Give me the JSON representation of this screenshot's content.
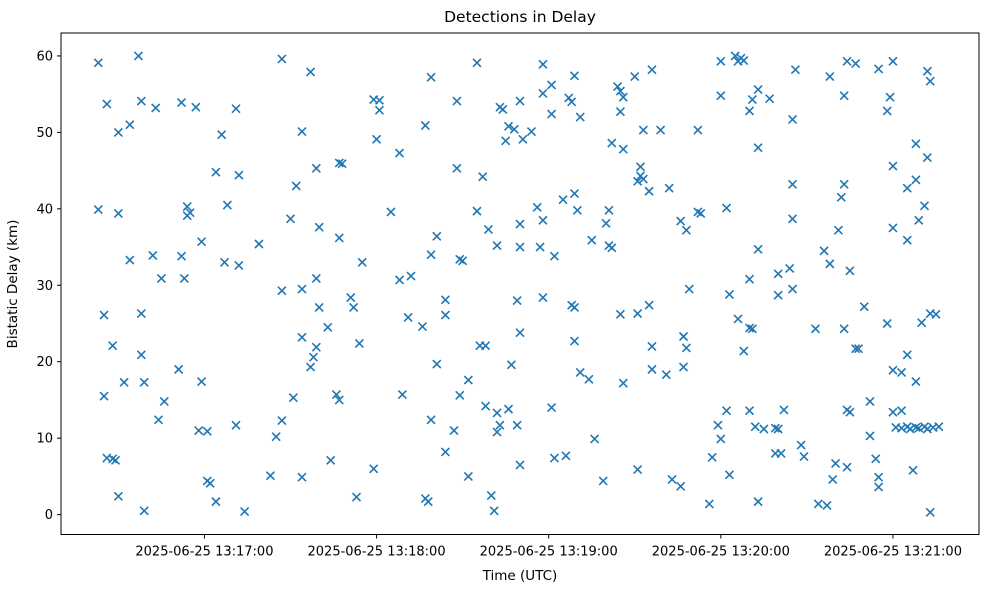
{
  "chart_data": {
    "type": "scatter",
    "title": "Detections in Delay",
    "xlabel": "Time (UTC)",
    "ylabel": "Bistatic Delay (km)",
    "legend": null,
    "grid": false,
    "marker": "x",
    "marker_color": "#1f77b4",
    "x_unit": "seconds after 2025-06-25 13:16:00 UTC",
    "xlim_seconds": [
      10,
      330
    ],
    "ylim": [
      -2.6,
      63.0
    ],
    "x_ticks": [
      {
        "t": 60,
        "label": "2025-06-25 13:17:00"
      },
      {
        "t": 120,
        "label": "2025-06-25 13:18:00"
      },
      {
        "t": 180,
        "label": "2025-06-25 13:19:00"
      },
      {
        "t": 240,
        "label": "2025-06-25 13:20:00"
      },
      {
        "t": 300,
        "label": "2025-06-25 13:21:00"
      }
    ],
    "y_ticks": [
      0,
      10,
      20,
      30,
      40,
      50,
      60
    ],
    "points": [
      [
        23,
        59.1
      ],
      [
        37,
        60.0
      ],
      [
        87,
        59.6
      ],
      [
        26,
        53.7
      ],
      [
        38,
        54.1
      ],
      [
        43,
        53.2
      ],
      [
        52,
        53.9
      ],
      [
        57,
        53.3
      ],
      [
        71,
        53.1
      ],
      [
        34,
        51.0
      ],
      [
        30,
        50.0
      ],
      [
        66,
        49.7
      ],
      [
        64,
        44.8
      ],
      [
        72,
        44.4
      ],
      [
        23,
        39.9
      ],
      [
        30,
        39.4
      ],
      [
        54,
        40.3
      ],
      [
        55,
        39.5
      ],
      [
        54,
        39.1
      ],
      [
        68,
        40.5
      ],
      [
        90,
        38.7
      ],
      [
        59,
        35.7
      ],
      [
        79,
        35.4
      ],
      [
        34,
        33.3
      ],
      [
        42,
        33.9
      ],
      [
        52,
        33.8
      ],
      [
        67,
        33.0
      ],
      [
        72,
        32.6
      ],
      [
        45,
        30.9
      ],
      [
        53,
        30.9
      ],
      [
        97,
        57.9
      ],
      [
        155,
        59.1
      ],
      [
        139,
        57.2
      ],
      [
        119,
        54.3
      ],
      [
        121,
        54.2
      ],
      [
        121,
        52.9
      ],
      [
        148,
        54.1
      ],
      [
        163,
        53.3
      ],
      [
        164,
        53.0
      ],
      [
        170,
        54.1
      ],
      [
        94,
        50.1
      ],
      [
        137,
        50.9
      ],
      [
        166,
        50.8
      ],
      [
        168,
        50.4
      ],
      [
        165,
        48.9
      ],
      [
        171,
        49.1
      ],
      [
        120,
        49.1
      ],
      [
        128,
        47.3
      ],
      [
        107,
        46.0
      ],
      [
        108,
        45.9
      ],
      [
        99,
        45.3
      ],
      [
        148,
        45.3
      ],
      [
        157,
        44.2
      ],
      [
        92,
        43.0
      ],
      [
        125,
        39.6
      ],
      [
        155,
        39.7
      ],
      [
        100,
        37.6
      ],
      [
        107,
        36.2
      ],
      [
        141,
        36.4
      ],
      [
        139,
        34.0
      ],
      [
        149,
        33.4
      ],
      [
        150,
        33.2
      ],
      [
        115,
        33.0
      ],
      [
        159,
        37.3
      ],
      [
        162,
        35.2
      ],
      [
        170,
        38.0
      ],
      [
        170,
        35.0
      ],
      [
        99,
        30.9
      ],
      [
        128,
        30.7
      ],
      [
        132,
        31.2
      ],
      [
        178,
        58.9
      ],
      [
        189,
        57.4
      ],
      [
        181,
        56.2
      ],
      [
        178,
        55.1
      ],
      [
        187,
        54.5
      ],
      [
        188,
        54.0
      ],
      [
        181,
        52.4
      ],
      [
        191,
        52.0
      ],
      [
        204,
        56.0
      ],
      [
        205,
        55.4
      ],
      [
        206,
        54.6
      ],
      [
        210,
        57.3
      ],
      [
        216,
        58.2
      ],
      [
        205,
        52.7
      ],
      [
        240,
        59.3
      ],
      [
        245,
        60.0
      ],
      [
        246,
        59.3
      ],
      [
        247,
        59.7
      ],
      [
        248,
        59.4
      ],
      [
        240,
        54.8
      ],
      [
        251,
        54.3
      ],
      [
        250,
        52.8
      ],
      [
        213,
        50.3
      ],
      [
        219,
        50.3
      ],
      [
        232,
        50.3
      ],
      [
        174,
        50.1
      ],
      [
        202,
        48.6
      ],
      [
        206,
        47.8
      ],
      [
        212,
        45.5
      ],
      [
        212,
        44.3
      ],
      [
        211,
        43.6
      ],
      [
        213,
        43.9
      ],
      [
        215,
        42.3
      ],
      [
        222,
        42.7
      ],
      [
        185,
        41.2
      ],
      [
        189,
        42.0
      ],
      [
        176,
        40.2
      ],
      [
        178,
        38.5
      ],
      [
        190,
        39.8
      ],
      [
        201,
        39.8
      ],
      [
        200,
        38.1
      ],
      [
        232,
        39.6
      ],
      [
        233,
        39.4
      ],
      [
        226,
        38.4
      ],
      [
        228,
        37.2
      ],
      [
        242,
        40.1
      ],
      [
        195,
        35.9
      ],
      [
        201,
        35.2
      ],
      [
        202,
        34.9
      ],
      [
        177,
        35.0
      ],
      [
        182,
        33.8
      ],
      [
        284,
        59.3
      ],
      [
        287,
        59.0
      ],
      [
        295,
        58.3
      ],
      [
        300,
        59.3
      ],
      [
        266,
        58.2
      ],
      [
        278,
        57.3
      ],
      [
        312,
        58.0
      ],
      [
        313,
        56.7
      ],
      [
        253,
        55.6
      ],
      [
        257,
        54.4
      ],
      [
        283,
        54.8
      ],
      [
        299,
        54.6
      ],
      [
        298,
        52.8
      ],
      [
        265,
        51.7
      ],
      [
        253,
        48.0
      ],
      [
        308,
        48.5
      ],
      [
        312,
        46.7
      ],
      [
        300,
        45.6
      ],
      [
        305,
        42.7
      ],
      [
        308,
        43.8
      ],
      [
        265,
        43.2
      ],
      [
        283,
        43.2
      ],
      [
        282,
        41.5
      ],
      [
        311,
        40.4
      ],
      [
        309,
        38.5
      ],
      [
        265,
        38.7
      ],
      [
        281,
        37.2
      ],
      [
        300,
        37.5
      ],
      [
        305,
        35.9
      ],
      [
        253,
        34.7
      ],
      [
        276,
        34.5
      ],
      [
        278,
        32.8
      ],
      [
        285,
        31.9
      ],
      [
        260,
        31.5
      ],
      [
        264,
        32.2
      ],
      [
        250,
        30.8
      ],
      [
        87,
        29.3
      ],
      [
        25,
        26.1
      ],
      [
        38,
        26.3
      ],
      [
        28,
        22.1
      ],
      [
        38,
        20.9
      ],
      [
        51,
        19.0
      ],
      [
        32,
        17.3
      ],
      [
        39,
        17.3
      ],
      [
        59,
        17.4
      ],
      [
        25,
        15.5
      ],
      [
        46,
        14.8
      ],
      [
        44,
        12.4
      ],
      [
        58,
        11.0
      ],
      [
        61,
        10.9
      ],
      [
        71,
        11.7
      ],
      [
        87,
        12.3
      ],
      [
        85,
        10.2
      ],
      [
        26,
        7.4
      ],
      [
        28,
        7.3
      ],
      [
        29,
        7.1
      ],
      [
        83,
        5.1
      ],
      [
        61,
        4.4
      ],
      [
        62,
        4.1
      ],
      [
        30,
        2.4
      ],
      [
        39,
        0.5
      ],
      [
        64,
        1.7
      ],
      [
        74,
        0.4
      ],
      [
        94,
        29.5
      ],
      [
        100,
        27.1
      ],
      [
        111,
        28.4
      ],
      [
        112,
        27.1
      ],
      [
        131,
        25.8
      ],
      [
        136,
        24.6
      ],
      [
        144,
        28.1
      ],
      [
        144,
        26.1
      ],
      [
        169,
        28.0
      ],
      [
        103,
        24.5
      ],
      [
        94,
        23.2
      ],
      [
        114,
        22.4
      ],
      [
        99,
        21.9
      ],
      [
        98,
        20.6
      ],
      [
        97,
        19.3
      ],
      [
        156,
        22.1
      ],
      [
        158,
        22.1
      ],
      [
        170,
        23.8
      ],
      [
        141,
        19.7
      ],
      [
        167,
        19.6
      ],
      [
        152,
        17.6
      ],
      [
        91,
        15.3
      ],
      [
        106,
        15.7
      ],
      [
        107,
        15.0
      ],
      [
        129,
        15.7
      ],
      [
        149,
        15.6
      ],
      [
        158,
        14.2
      ],
      [
        162,
        13.3
      ],
      [
        166,
        13.8
      ],
      [
        139,
        12.4
      ],
      [
        147,
        11.0
      ],
      [
        163,
        11.7
      ],
      [
        162,
        10.8
      ],
      [
        169,
        11.7
      ],
      [
        170,
        6.5
      ],
      [
        144,
        8.2
      ],
      [
        104,
        7.1
      ],
      [
        119,
        6.0
      ],
      [
        94,
        4.9
      ],
      [
        152,
        5.0
      ],
      [
        113,
        2.3
      ],
      [
        137,
        2.1
      ],
      [
        138,
        1.7
      ],
      [
        160,
        2.5
      ],
      [
        161,
        0.5
      ],
      [
        229,
        29.5
      ],
      [
        243,
        28.8
      ],
      [
        178,
        28.4
      ],
      [
        188,
        27.4
      ],
      [
        189,
        27.1
      ],
      [
        205,
        26.2
      ],
      [
        211,
        26.3
      ],
      [
        215,
        27.4
      ],
      [
        246,
        25.6
      ],
      [
        189,
        22.7
      ],
      [
        216,
        22.0
      ],
      [
        227,
        23.3
      ],
      [
        228,
        21.8
      ],
      [
        248,
        21.4
      ],
      [
        216,
        19.0
      ],
      [
        221,
        18.3
      ],
      [
        227,
        19.3
      ],
      [
        191,
        18.6
      ],
      [
        194,
        17.7
      ],
      [
        206,
        17.2
      ],
      [
        181,
        14.0
      ],
      [
        242,
        13.6
      ],
      [
        239,
        11.7
      ],
      [
        240,
        9.9
      ],
      [
        196,
        9.9
      ],
      [
        182,
        7.4
      ],
      [
        186,
        7.7
      ],
      [
        211,
        5.9
      ],
      [
        199,
        4.4
      ],
      [
        223,
        4.6
      ],
      [
        226,
        3.7
      ],
      [
        237,
        7.5
      ],
      [
        243,
        5.2
      ],
      [
        236,
        1.4
      ],
      [
        260,
        28.7
      ],
      [
        265,
        29.5
      ],
      [
        290,
        27.2
      ],
      [
        298,
        25.0
      ],
      [
        310,
        25.1
      ],
      [
        313,
        26.3
      ],
      [
        315,
        26.2
      ],
      [
        250,
        24.4
      ],
      [
        251,
        24.3
      ],
      [
        273,
        24.3
      ],
      [
        283,
        24.3
      ],
      [
        287,
        21.7
      ],
      [
        288,
        21.7
      ],
      [
        305,
        20.9
      ],
      [
        300,
        18.9
      ],
      [
        303,
        18.6
      ],
      [
        308,
        17.4
      ],
      [
        292,
        14.8
      ],
      [
        262,
        13.7
      ],
      [
        250,
        13.6
      ],
      [
        284,
        13.7
      ],
      [
        285,
        13.4
      ],
      [
        300,
        13.4
      ],
      [
        303,
        13.6
      ],
      [
        252,
        11.5
      ],
      [
        255,
        11.2
      ],
      [
        259,
        11.3
      ],
      [
        260,
        11.2
      ],
      [
        301,
        11.4
      ],
      [
        303,
        11.3
      ],
      [
        305,
        11.5
      ],
      [
        306,
        11.2
      ],
      [
        308,
        11.4
      ],
      [
        309,
        11.3
      ],
      [
        311,
        11.5
      ],
      [
        312,
        11.2
      ],
      [
        314,
        11.4
      ],
      [
        316,
        11.5
      ],
      [
        292,
        10.3
      ],
      [
        268,
        9.1
      ],
      [
        259,
        8.0
      ],
      [
        261,
        8.0
      ],
      [
        269,
        7.6
      ],
      [
        280,
        6.7
      ],
      [
        284,
        6.2
      ],
      [
        294,
        7.3
      ],
      [
        307,
        5.8
      ],
      [
        279,
        4.6
      ],
      [
        295,
        4.9
      ],
      [
        295,
        3.6
      ],
      [
        253,
        1.7
      ],
      [
        274,
        1.4
      ],
      [
        277,
        1.2
      ],
      [
        313,
        0.3
      ]
    ]
  }
}
